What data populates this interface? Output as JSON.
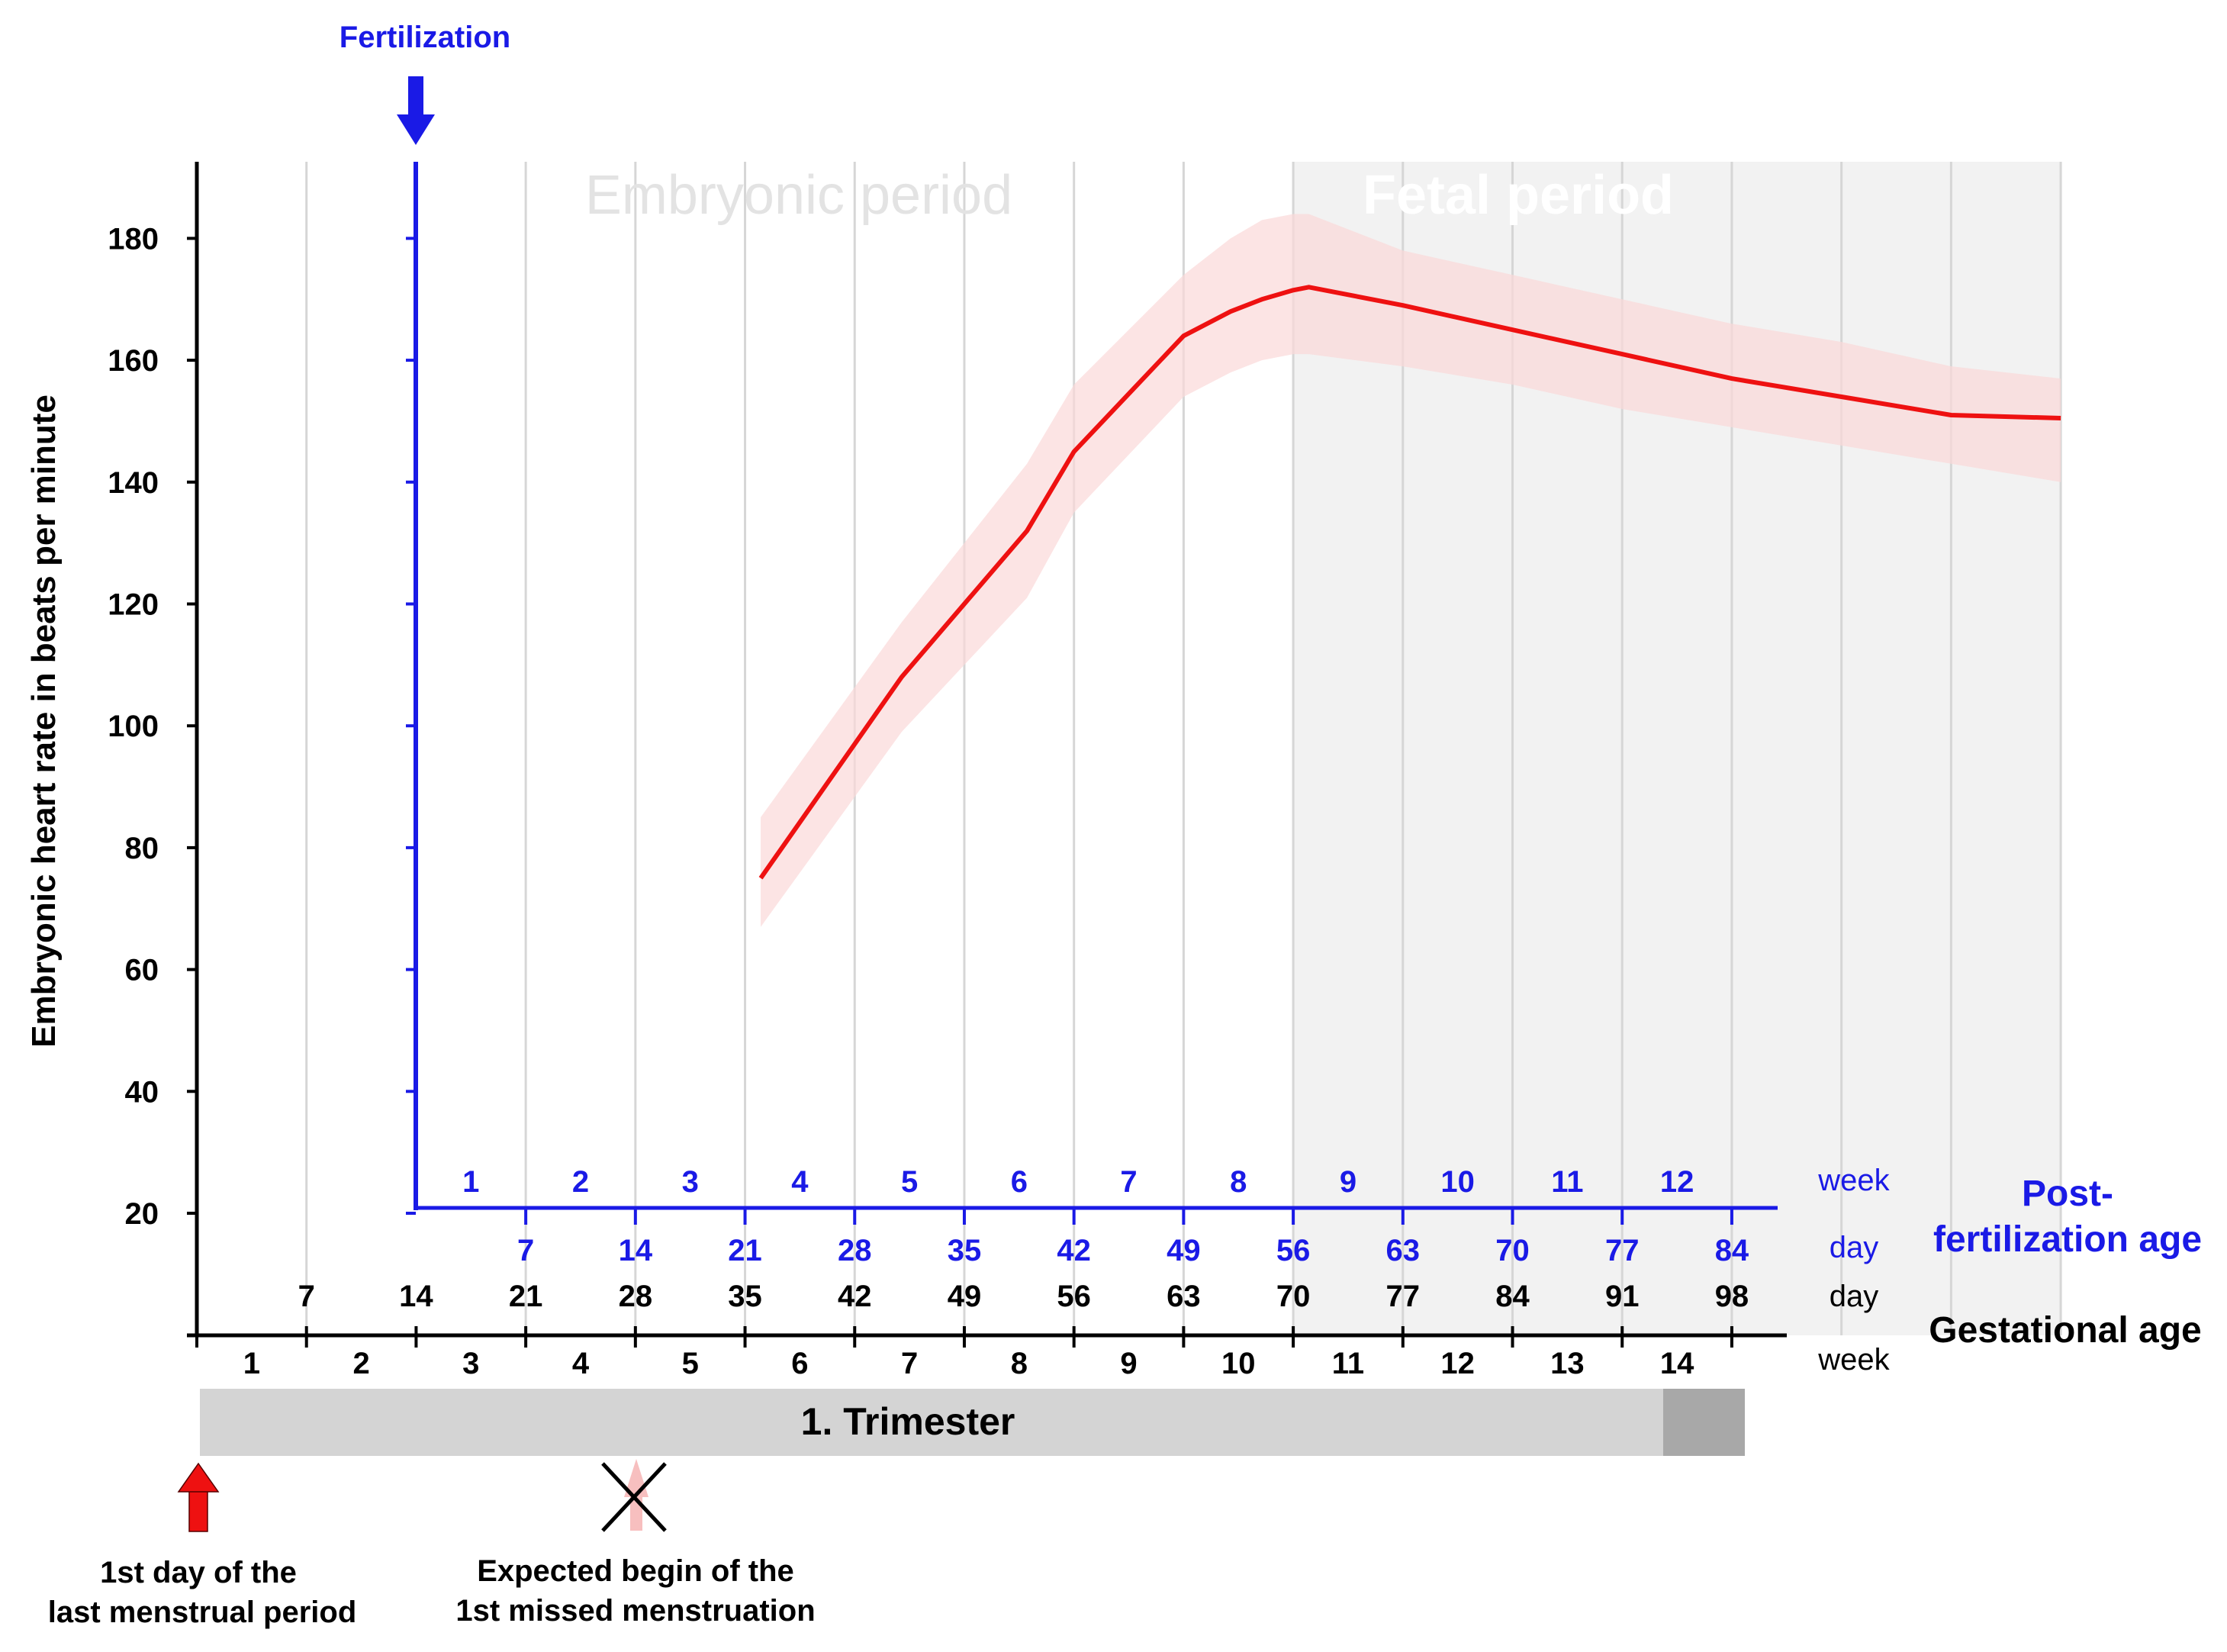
{
  "colors": {
    "blue": "#1a1ae6",
    "red": "#ee1111",
    "band": "#fbd9d9",
    "grid": "#d6d6d6",
    "fetal_shade": "#f2f2f2",
    "trimester": "#d4d4d4",
    "trimester_dark": "#a8a8a8"
  },
  "labels": {
    "fertilization": "Fertilization",
    "embryonic_period": "Embryonic period",
    "fetal_period": "Fetal period",
    "y_axis": "Embryonic heart rate in beats per minute",
    "post_week_unit": "week",
    "post_day_unit": "day",
    "post_title_1": "Post-",
    "post_title_2": "fertilization age",
    "gest_day_unit": "day",
    "gest_week_unit": "week",
    "gest_title": "Gestational age",
    "trimester": "1. Trimester",
    "lmp_1": "1st day of the",
    "lmp_2": "last menstrual period",
    "missed_1": "Expected begin of the",
    "missed_2": "1st missed menstruation"
  },
  "chart_data": {
    "type": "line",
    "ylabel": "Embryonic heart rate in beats per minute",
    "y_ticks": [
      20,
      40,
      60,
      80,
      100,
      120,
      140,
      160,
      180
    ],
    "x_unit": "gestational age (days)",
    "series": [
      {
        "values": [
          {
            "x": 36,
            "y": 75
          },
          {
            "x": 45,
            "y": 108
          },
          {
            "x": 53,
            "y": 132
          },
          {
            "x": 56,
            "y": 145
          },
          {
            "x": 63,
            "y": 164
          },
          {
            "x": 66,
            "y": 168
          },
          {
            "x": 68,
            "y": 170
          },
          {
            "x": 70,
            "y": 171.5
          },
          {
            "x": 71,
            "y": 172
          },
          {
            "x": 77,
            "y": 169
          },
          {
            "x": 84,
            "y": 165
          },
          {
            "x": 91,
            "y": 161
          },
          {
            "x": 98,
            "y": 157
          },
          {
            "x": 105,
            "y": 154
          },
          {
            "x": 112,
            "y": 151
          },
          {
            "x": 119,
            "y": 150.5
          }
        ],
        "band_upper": [
          85,
          117,
          143,
          156,
          174,
          180,
          183,
          184,
          184,
          178,
          174,
          170,
          166,
          163,
          159,
          157
        ],
        "band_lower": [
          67,
          99,
          121,
          135,
          154,
          158,
          160,
          161,
          161,
          159,
          156,
          152,
          149,
          146,
          143,
          140
        ]
      }
    ],
    "post_fertilization_weeks": [
      "1",
      "2",
      "3",
      "4",
      "5",
      "6",
      "7",
      "8",
      "9",
      "10",
      "11",
      "12"
    ],
    "post_fertilization_days": [
      "7",
      "14",
      "21",
      "28",
      "35",
      "42",
      "49",
      "56",
      "63",
      "70",
      "77",
      "84"
    ],
    "gestational_days": [
      "7",
      "14",
      "21",
      "28",
      "35",
      "42",
      "49",
      "56",
      "63",
      "70",
      "77",
      "84",
      "91",
      "98"
    ],
    "gestational_weeks": [
      "1",
      "2",
      "3",
      "4",
      "5",
      "6",
      "7",
      "8",
      "9",
      "10",
      "11",
      "12",
      "13",
      "14"
    ],
    "fertilization_day": 14,
    "fetal_period_start_day": 70,
    "trimester_end_day": 98,
    "missed_menstruation_day": 28
  }
}
